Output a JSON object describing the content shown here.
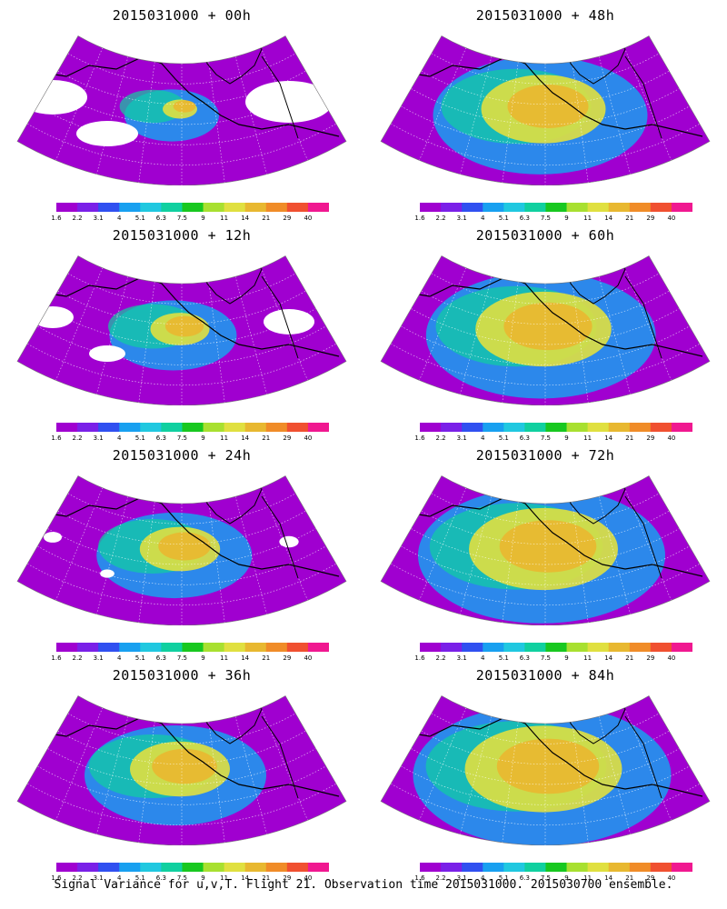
{
  "panels": [
    {
      "title": "2015031000 + 00h",
      "level": 0.1
    },
    {
      "title": "2015031000 + 48h",
      "level": 0.65
    },
    {
      "title": "2015031000 + 12h",
      "level": 0.25
    },
    {
      "title": "2015031000 + 60h",
      "level": 0.72
    },
    {
      "title": "2015031000 + 24h",
      "level": 0.38
    },
    {
      "title": "2015031000 + 72h",
      "level": 0.8
    },
    {
      "title": "2015031000 + 36h",
      "level": 0.5
    },
    {
      "title": "2015031000 + 84h",
      "level": 0.85
    }
  ],
  "colorbar": {
    "labels": [
      "1.6",
      "2.2",
      "3.1",
      "4",
      "5.1",
      "6.3",
      "7.5",
      "9",
      "11",
      "14",
      "21",
      "29",
      "40"
    ],
    "colors": [
      "#a000d0",
      "#7a20e8",
      "#3050f0",
      "#18a0f0",
      "#20c8e0",
      "#10d0a0",
      "#18c820",
      "#a8e030",
      "#e0e040",
      "#e8b830",
      "#f08c28",
      "#f05030",
      "#f01890"
    ]
  },
  "footer": "Signal Variance for u,v,T. Flight 21. Observation time 2015031000. 2015030700 ensemble.",
  "map_colors": {
    "background": "#a000d0",
    "mid": "#18a0f0",
    "high": "#e8b830",
    "coast": "#000000",
    "missing": "#ffffff",
    "grid": "#ffffff"
  }
}
